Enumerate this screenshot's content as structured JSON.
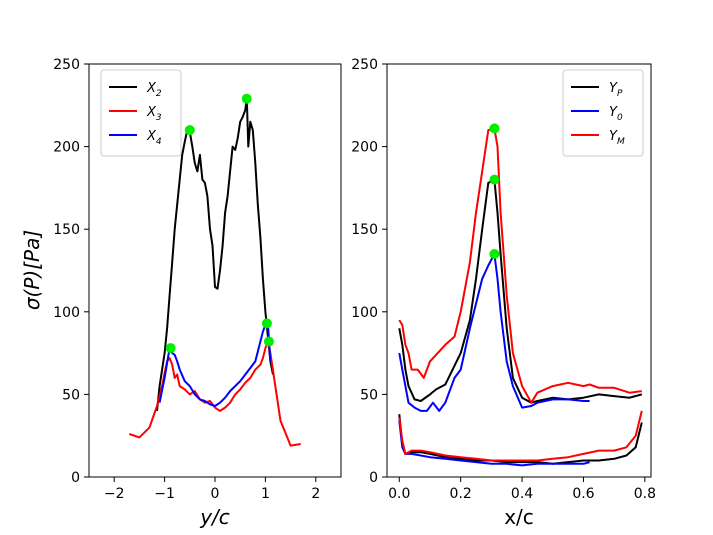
{
  "figure": {
    "ylabel": "σ(P)[Pa]"
  },
  "chart_data": [
    {
      "type": "line",
      "xlabel": "y/c",
      "xlim": [
        -2.5,
        2.5
      ],
      "ylim": [
        0,
        250
      ],
      "xticks": [
        -2,
        -1,
        0,
        1,
        2
      ],
      "xtick_labels": [
        "−2",
        "−1",
        "0",
        "1",
        "2"
      ],
      "yticks": [
        0,
        50,
        100,
        150,
        200,
        250
      ],
      "ytick_labels": [
        "0",
        "50",
        "100",
        "150",
        "200",
        "250"
      ],
      "legend_position": "top-left",
      "series": [
        {
          "name": "X2",
          "label_main": "X",
          "label_sub": "2",
          "color": "#000000",
          "x": [
            -1.15,
            -1.1,
            -1.05,
            -1.0,
            -0.95,
            -0.9,
            -0.85,
            -0.8,
            -0.75,
            -0.7,
            -0.65,
            -0.6,
            -0.55,
            -0.5,
            -0.45,
            -0.4,
            -0.35,
            -0.3,
            -0.25,
            -0.2,
            -0.15,
            -0.1,
            -0.05,
            0.0,
            0.05,
            0.1,
            0.15,
            0.2,
            0.25,
            0.3,
            0.35,
            0.4,
            0.45,
            0.5,
            0.55,
            0.6,
            0.63,
            0.66,
            0.7,
            0.75,
            0.8,
            0.85,
            0.9,
            0.95,
            1.0,
            1.05,
            1.1,
            1.15
          ],
          "y": [
            40,
            55,
            65,
            75,
            90,
            110,
            130,
            150,
            165,
            180,
            195,
            203,
            210,
            209,
            200,
            190,
            185,
            195,
            180,
            178,
            170,
            150,
            140,
            115,
            114,
            125,
            140,
            160,
            170,
            185,
            200,
            198,
            205,
            215,
            218,
            222,
            229,
            200,
            215,
            210,
            190,
            165,
            145,
            120,
            100,
            85,
            70,
            62
          ]
        },
        {
          "name": "X3",
          "label_main": "X",
          "label_sub": "3",
          "color": "#ff0000",
          "x": [
            -1.7,
            -1.5,
            -1.3,
            -1.15,
            -1.05,
            -1.0,
            -0.95,
            -0.9,
            -0.85,
            -0.8,
            -0.75,
            -0.7,
            -0.6,
            -0.5,
            -0.4,
            -0.3,
            -0.2,
            -0.1,
            0.0,
            0.1,
            0.2,
            0.3,
            0.4,
            0.5,
            0.6,
            0.7,
            0.8,
            0.9,
            0.95,
            1.0,
            1.05,
            1.1,
            1.3,
            1.5,
            1.7
          ],
          "y": [
            26,
            24,
            30,
            43,
            55,
            63,
            70,
            72,
            68,
            60,
            62,
            55,
            53,
            50,
            52,
            47,
            45,
            46,
            42,
            40,
            42,
            45,
            50,
            53,
            57,
            60,
            65,
            68,
            72,
            78,
            82,
            75,
            34,
            19,
            20
          ]
        },
        {
          "name": "X4",
          "label_main": "X",
          "label_sub": "4",
          "color": "#0000ff",
          "x": [
            -1.1,
            -1.0,
            -0.9,
            -0.85,
            -0.8,
            -0.75,
            -0.7,
            -0.6,
            -0.5,
            -0.4,
            -0.3,
            -0.2,
            -0.1,
            0.0,
            0.1,
            0.2,
            0.3,
            0.4,
            0.5,
            0.6,
            0.7,
            0.8,
            0.9,
            0.95,
            1.0,
            1.05,
            1.1
          ],
          "y": [
            45,
            60,
            78,
            75,
            74,
            70,
            65,
            58,
            55,
            50,
            47,
            46,
            44,
            43,
            45,
            48,
            52,
            55,
            58,
            62,
            66,
            70,
            82,
            88,
            92,
            93,
            70
          ]
        }
      ],
      "markers": [
        {
          "x": -0.5,
          "y": 210,
          "color": "#00ee00"
        },
        {
          "x": 0.63,
          "y": 229,
          "color": "#00ee00"
        },
        {
          "x": -0.88,
          "y": 78,
          "color": "#00ee00"
        },
        {
          "x": 1.03,
          "y": 93,
          "color": "#00ee00"
        },
        {
          "x": 1.07,
          "y": 82,
          "color": "#00ee00"
        }
      ]
    },
    {
      "type": "line",
      "xlabel": "x/c",
      "xlim": [
        -0.04,
        0.82
      ],
      "ylim": [
        0,
        250
      ],
      "xticks": [
        0.0,
        0.2,
        0.4,
        0.6,
        0.8
      ],
      "xtick_labels": [
        "0.0",
        "0.2",
        "0.4",
        "0.6",
        "0.8"
      ],
      "yticks": [
        0,
        50,
        100,
        150,
        200,
        250
      ],
      "ytick_labels": [
        "0",
        "50",
        "100",
        "150",
        "200",
        "250"
      ],
      "legend_position": "top-right",
      "series": [
        {
          "name": "YP",
          "label_main": "Y",
          "label_sub": "P",
          "color": "#000000",
          "x": [
            0.0,
            0.01,
            0.02,
            0.03,
            0.05,
            0.07,
            0.1,
            0.12,
            0.15,
            0.2,
            0.23,
            0.25,
            0.27,
            0.29,
            0.31,
            0.32,
            0.33,
            0.35,
            0.37,
            0.4,
            0.43,
            0.45,
            0.5,
            0.55,
            0.6,
            0.65,
            0.7,
            0.75,
            0.79
          ],
          "y": [
            90,
            80,
            65,
            55,
            47,
            46,
            50,
            53,
            56,
            75,
            95,
            120,
            150,
            178,
            180,
            160,
            135,
            90,
            60,
            48,
            45,
            46,
            48,
            47,
            48,
            50,
            49,
            48,
            50
          ]
        },
        {
          "name": "YP_low",
          "label_main": "",
          "label_sub": "",
          "color": "#000000",
          "x": [
            0.0,
            0.01,
            0.02,
            0.04,
            0.07,
            0.1,
            0.15,
            0.2,
            0.25,
            0.3,
            0.35,
            0.4,
            0.45,
            0.5,
            0.55,
            0.6,
            0.65,
            0.7,
            0.74,
            0.77,
            0.79
          ],
          "y": [
            38,
            20,
            14,
            15,
            15,
            14,
            12,
            11,
            10,
            10,
            9,
            9,
            9,
            8,
            9,
            10,
            10,
            11,
            13,
            18,
            33
          ]
        },
        {
          "name": "Y0",
          "label_main": "Y",
          "label_sub": "0",
          "color": "#0000ff",
          "x": [
            0.0,
            0.01,
            0.02,
            0.03,
            0.05,
            0.07,
            0.09,
            0.11,
            0.13,
            0.15,
            0.18,
            0.2,
            0.23,
            0.27,
            0.29,
            0.31,
            0.32,
            0.33,
            0.35,
            0.37,
            0.4,
            0.43,
            0.45,
            0.5,
            0.55,
            0.6,
            0.62
          ],
          "y": [
            75,
            65,
            55,
            45,
            42,
            40,
            40,
            45,
            40,
            45,
            60,
            65,
            90,
            120,
            128,
            135,
            120,
            100,
            70,
            55,
            42,
            43,
            45,
            47,
            47,
            46,
            46
          ]
        },
        {
          "name": "Y0_low",
          "label_main": "",
          "label_sub": "",
          "color": "#0000ff",
          "x": [
            0.0,
            0.01,
            0.02,
            0.04,
            0.07,
            0.1,
            0.15,
            0.2,
            0.25,
            0.3,
            0.35,
            0.4,
            0.45,
            0.5,
            0.55,
            0.6,
            0.62
          ],
          "y": [
            34,
            18,
            14,
            14,
            13,
            12,
            11,
            10,
            9,
            8,
            8,
            7,
            8,
            8,
            8,
            8,
            9
          ]
        },
        {
          "name": "YM",
          "label_main": "Y",
          "label_sub": "M",
          "color": "#ff0000",
          "x": [
            0.0,
            0.01,
            0.02,
            0.03,
            0.04,
            0.06,
            0.08,
            0.1,
            0.12,
            0.15,
            0.18,
            0.2,
            0.23,
            0.25,
            0.27,
            0.29,
            0.31,
            0.32,
            0.33,
            0.35,
            0.37,
            0.4,
            0.43,
            0.45,
            0.5,
            0.55,
            0.6,
            0.62,
            0.65,
            0.7,
            0.75,
            0.79
          ],
          "y": [
            95,
            92,
            80,
            75,
            65,
            65,
            60,
            70,
            74,
            80,
            85,
            100,
            130,
            160,
            185,
            210,
            211,
            200,
            160,
            110,
            75,
            55,
            45,
            51,
            55,
            57,
            55,
            56,
            54,
            54,
            51,
            52
          ]
        },
        {
          "name": "YM_low",
          "label_main": "",
          "label_sub": "",
          "color": "#ff0000",
          "x": [
            0.0,
            0.01,
            0.02,
            0.04,
            0.07,
            0.1,
            0.15,
            0.2,
            0.25,
            0.3,
            0.35,
            0.4,
            0.45,
            0.5,
            0.55,
            0.6,
            0.65,
            0.7,
            0.74,
            0.77,
            0.79
          ],
          "y": [
            36,
            22,
            14,
            16,
            16,
            15,
            13,
            12,
            11,
            10,
            10,
            10,
            10,
            11,
            12,
            14,
            16,
            16,
            18,
            25,
            40
          ]
        }
      ],
      "markers": [
        {
          "x": 0.31,
          "y": 211,
          "color": "#00ee00"
        },
        {
          "x": 0.31,
          "y": 180,
          "color": "#00ee00"
        },
        {
          "x": 0.31,
          "y": 135,
          "color": "#00ee00"
        }
      ]
    }
  ]
}
